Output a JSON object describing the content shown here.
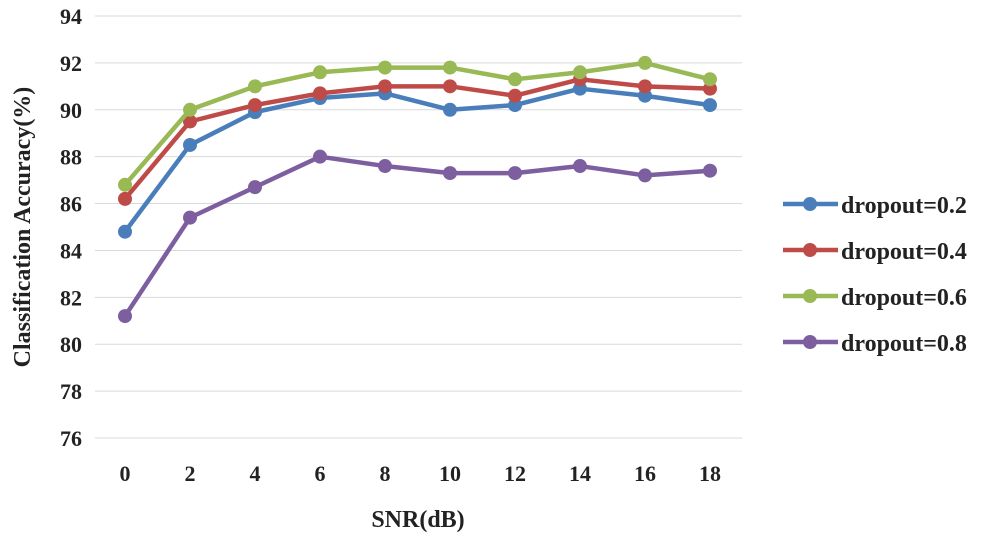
{
  "chart_data": {
    "type": "line",
    "title": "",
    "xlabel": "SNR(dB)",
    "ylabel": "Classification  Accuracy(%)",
    "x": [
      0,
      2,
      4,
      6,
      8,
      10,
      12,
      14,
      16,
      18
    ],
    "ylim": [
      76,
      94
    ],
    "yticks": [
      76,
      78,
      80,
      82,
      84,
      86,
      88,
      90,
      92,
      94
    ],
    "grid": true,
    "legend_position": "right",
    "series": [
      {
        "name": "dropout=0.2",
        "color": "#4a7ebb",
        "values": [
          84.8,
          88.5,
          89.9,
          90.5,
          90.7,
          90.0,
          90.2,
          90.9,
          90.6,
          90.2
        ]
      },
      {
        "name": "dropout=0.4",
        "color": "#be4b48",
        "values": [
          86.2,
          89.5,
          90.2,
          90.7,
          91.0,
          91.0,
          90.6,
          91.3,
          91.0,
          90.9
        ]
      },
      {
        "name": "dropout=0.6",
        "color": "#98b954",
        "values": [
          86.8,
          90.0,
          91.0,
          91.6,
          91.8,
          91.8,
          91.3,
          91.6,
          92.0,
          91.3
        ]
      },
      {
        "name": "dropout=0.8",
        "color": "#7d5fa0",
        "values": [
          81.2,
          85.4,
          86.7,
          88.0,
          87.6,
          87.3,
          87.3,
          87.6,
          87.2,
          87.4
        ]
      }
    ]
  }
}
